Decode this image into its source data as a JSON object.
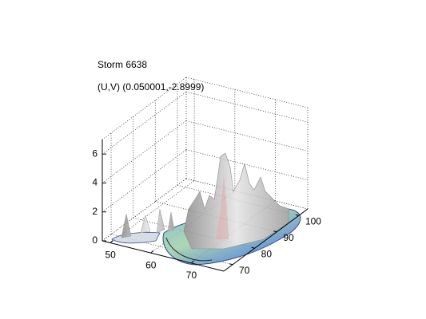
{
  "chart_data": {
    "type": "surface3d",
    "title": "Storm 6638",
    "subtitle": "(U,V) (0.050001,-2.8999)",
    "xlim": [
      48,
      78
    ],
    "ylim": [
      66,
      104
    ],
    "zlim": [
      0,
      7
    ],
    "xticks": [
      50,
      60,
      70
    ],
    "yticks": [
      70,
      80,
      90,
      100
    ],
    "zticks": [
      0,
      2,
      4,
      6
    ],
    "grid": true
  }
}
